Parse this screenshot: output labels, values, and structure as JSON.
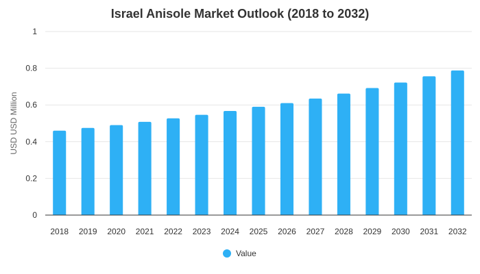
{
  "chart_data": {
    "type": "bar",
    "title": "Israel Anisole Market Outlook (2018 to 2032)",
    "xlabel": "",
    "ylabel": "USD USD Million",
    "categories": [
      "2018",
      "2019",
      "2020",
      "2021",
      "2022",
      "2023",
      "2024",
      "2025",
      "2026",
      "2027",
      "2028",
      "2029",
      "2030",
      "2031",
      "2032"
    ],
    "series": [
      {
        "name": "Value",
        "color": "#2eb0f5",
        "values": [
          0.46,
          0.475,
          0.49,
          0.508,
          0.527,
          0.546,
          0.567,
          0.59,
          0.61,
          0.635,
          0.662,
          0.692,
          0.722,
          0.756,
          0.788
        ]
      }
    ],
    "ylim": [
      0,
      1
    ],
    "yticks": [
      "0",
      "0.2",
      "0.4",
      "0.6",
      "0.8",
      "1"
    ],
    "grid": true,
    "legend": "bottom-center"
  }
}
